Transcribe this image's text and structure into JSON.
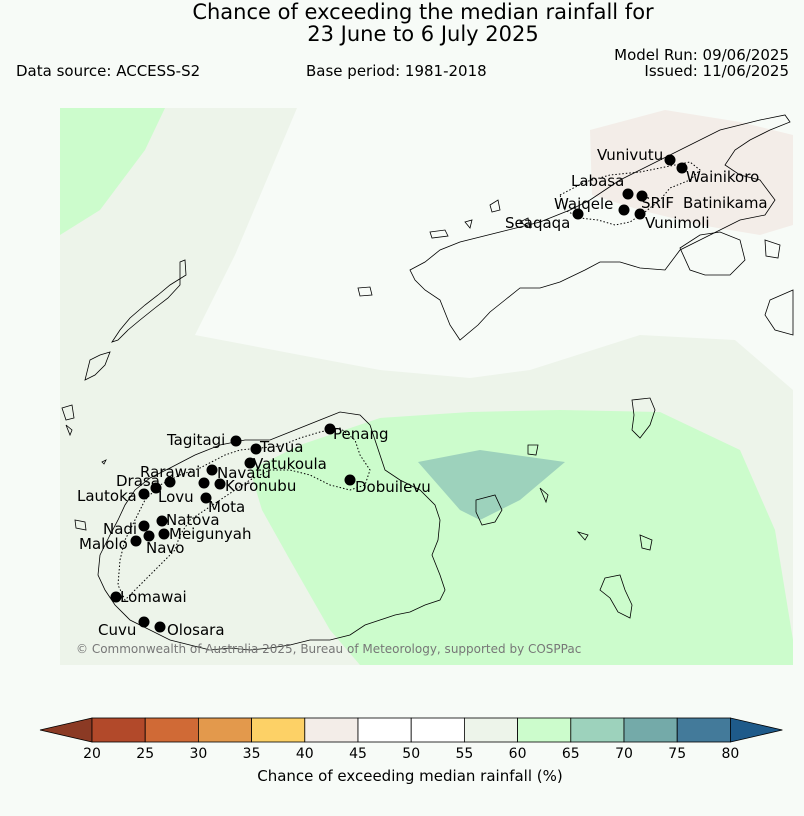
{
  "header": {
    "title_line1": "Chance of exceeding the median rainfall for",
    "title_line2": "23 June to 6 July 2025",
    "data_source": "Data source: ACCESS-S2",
    "base_period": "Base period: 1981-2018",
    "model_run": "Model Run: 09/06/2025",
    "issued": "Issued: 11/06/2025"
  },
  "places": [
    {
      "name": "Vunivutu"
    },
    {
      "name": "Wainikoro"
    },
    {
      "name": "Labasa"
    },
    {
      "name": "SRIF"
    },
    {
      "name": "Batinikama"
    },
    {
      "name": "Waiqele"
    },
    {
      "name": "Seaqaqa"
    },
    {
      "name": "Vunimoli"
    },
    {
      "name": "Tagitagi"
    },
    {
      "name": "Tavua"
    },
    {
      "name": "Penang"
    },
    {
      "name": "Vatukoula"
    },
    {
      "name": "Rarawai"
    },
    {
      "name": "Navatu"
    },
    {
      "name": "Drasa"
    },
    {
      "name": "Koronubu"
    },
    {
      "name": "Lautoka"
    },
    {
      "name": "Lovu"
    },
    {
      "name": "Mota"
    },
    {
      "name": "Dobuilevu"
    },
    {
      "name": "Natova"
    },
    {
      "name": "Nadi"
    },
    {
      "name": "Meigunyah"
    },
    {
      "name": "Malolo"
    },
    {
      "name": "Navo"
    },
    {
      "name": "Lomawai"
    },
    {
      "name": "Cuvu"
    },
    {
      "name": "Olosara"
    }
  ],
  "credit": "© Commonwealth of Australia 2025, Bureau of Meteorology, supported by COSPPac",
  "colorbar": {
    "title": "Chance of exceeding median rainfall (%)",
    "ticks": [
      "20",
      "25",
      "30",
      "35",
      "40",
      "45",
      "50",
      "55",
      "60",
      "65",
      "70",
      "75",
      "80"
    ],
    "colors": [
      "#8b3a24",
      "#b2492a",
      "#d06a36",
      "#e3994c",
      "#fdd166",
      "#f3ede8",
      "#ffffff",
      "#ffffff",
      "#edf4ea",
      "#ccfccc",
      "#9dd2bc",
      "#74aaa9",
      "#437a9a",
      "#1e5a8a"
    ]
  }
}
